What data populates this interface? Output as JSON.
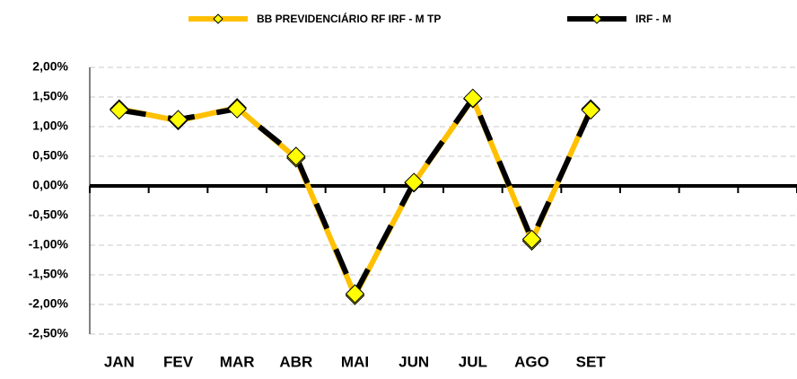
{
  "chart_data": {
    "type": "line",
    "categories": [
      "JAN",
      "FEV",
      "MAR",
      "ABR",
      "MAI",
      "JUN",
      "JUL",
      "AGO",
      "SET",
      null,
      null,
      null
    ],
    "series": [
      {
        "name": "BB PREVIDENCIÁRIO RF IRF - M TP",
        "color": "#ffc000",
        "marker_color": "#ffff00",
        "values": [
          1.3,
          1.1,
          1.32,
          0.47,
          -1.85,
          0.05,
          1.47,
          -0.93,
          1.3,
          null,
          null,
          null
        ]
      },
      {
        "name": "IRF - M",
        "color": "#000000",
        "marker_color": "#ffff00",
        "values": [
          1.28,
          1.12,
          1.3,
          0.5,
          -1.82,
          0.06,
          1.48,
          -0.9,
          1.28,
          null,
          null,
          null
        ]
      }
    ],
    "ylim": [
      -2.5,
      2.0
    ],
    "yticks": [
      {
        "value": 2.0,
        "label": "2,00%"
      },
      {
        "value": 1.5,
        "label": "1,50%"
      },
      {
        "value": 1.0,
        "label": "1,00%"
      },
      {
        "value": 0.5,
        "label": "0,50%"
      },
      {
        "value": 0.0,
        "label": "0,00%"
      },
      {
        "value": -0.5,
        "label": "-0,50%"
      },
      {
        "value": -1.0,
        "label": "-1,00%"
      },
      {
        "value": -1.5,
        "label": "-1,50%"
      },
      {
        "value": -2.0,
        "label": "-2,00%"
      },
      {
        "value": -2.5,
        "label": "-2,50%"
      }
    ],
    "grid": true,
    "legend": "top"
  }
}
